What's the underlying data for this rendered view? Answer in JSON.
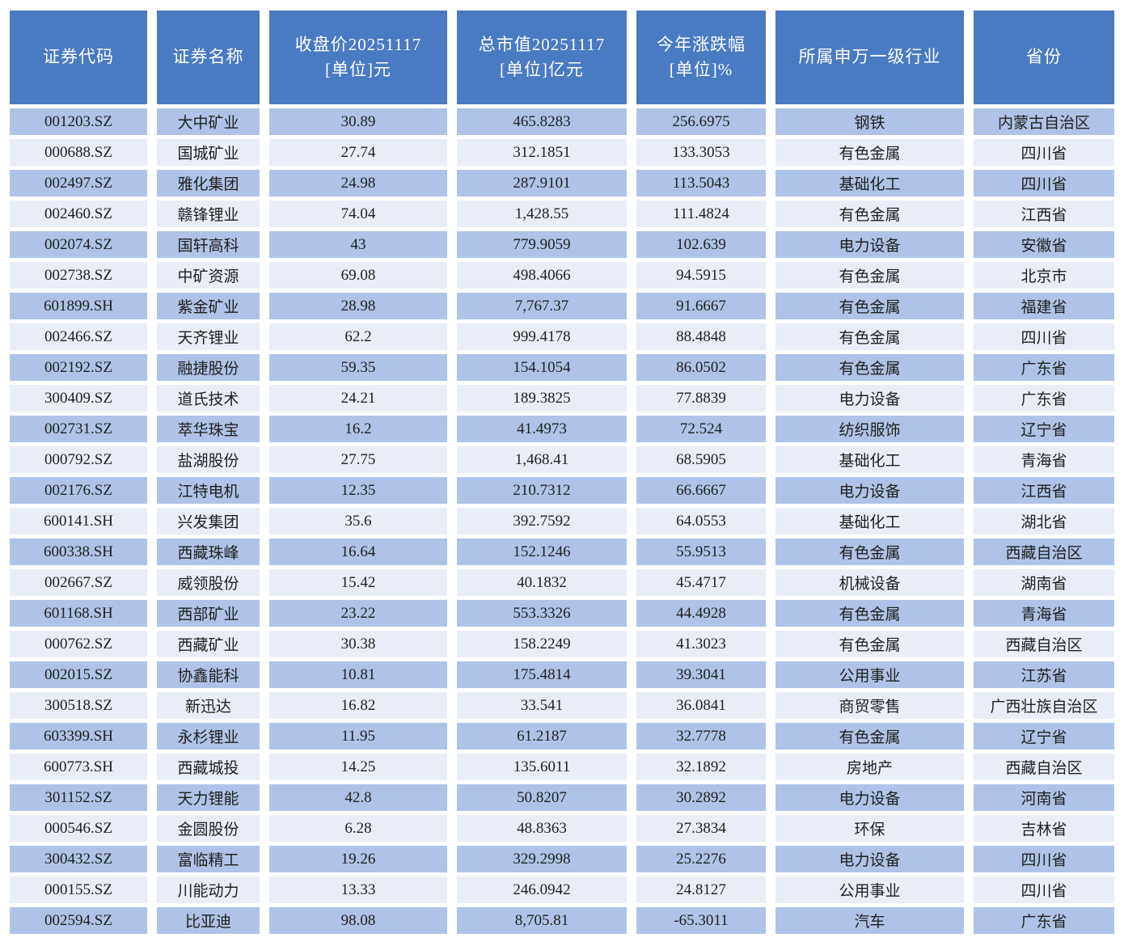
{
  "colors": {
    "header_bg": "#4a7ac1",
    "header_text": "#ffffff",
    "row_dark_bg": "#aec3e7",
    "row_light_bg": "#e9edf7",
    "cell_text": "#1f1f1f",
    "gap": "#ffffff"
  },
  "table": {
    "columns": [
      {
        "title": "证券代码",
        "unit": ""
      },
      {
        "title": "证券名称",
        "unit": ""
      },
      {
        "title": "收盘价20251117",
        "unit": "[单位]元"
      },
      {
        "title": "总市值20251117",
        "unit": "[单位]亿元"
      },
      {
        "title": "今年涨跌幅",
        "unit": "[单位]%"
      },
      {
        "title": "所属申万一级行业",
        "unit": ""
      },
      {
        "title": "省份",
        "unit": ""
      }
    ],
    "rows": [
      [
        "001203.SZ",
        "大中矿业",
        "30.89",
        "465.8283",
        "256.6975",
        "钢铁",
        "内蒙古自治区"
      ],
      [
        "000688.SZ",
        "国城矿业",
        "27.74",
        "312.1851",
        "133.3053",
        "有色金属",
        "四川省"
      ],
      [
        "002497.SZ",
        "雅化集团",
        "24.98",
        "287.9101",
        "113.5043",
        "基础化工",
        "四川省"
      ],
      [
        "002460.SZ",
        "赣锋锂业",
        "74.04",
        "1,428.55",
        "111.4824",
        "有色金属",
        "江西省"
      ],
      [
        "002074.SZ",
        "国轩高科",
        "43",
        "779.9059",
        "102.639",
        "电力设备",
        "安徽省"
      ],
      [
        "002738.SZ",
        "中矿资源",
        "69.08",
        "498.4066",
        "94.5915",
        "有色金属",
        "北京市"
      ],
      [
        "601899.SH",
        "紫金矿业",
        "28.98",
        "7,767.37",
        "91.6667",
        "有色金属",
        "福建省"
      ],
      [
        "002466.SZ",
        "天齐锂业",
        "62.2",
        "999.4178",
        "88.4848",
        "有色金属",
        "四川省"
      ],
      [
        "002192.SZ",
        "融捷股份",
        "59.35",
        "154.1054",
        "86.0502",
        "有色金属",
        "广东省"
      ],
      [
        "300409.SZ",
        "道氏技术",
        "24.21",
        "189.3825",
        "77.8839",
        "电力设备",
        "广东省"
      ],
      [
        "002731.SZ",
        "萃华珠宝",
        "16.2",
        "41.4973",
        "72.524",
        "纺织服饰",
        "辽宁省"
      ],
      [
        "000792.SZ",
        "盐湖股份",
        "27.75",
        "1,468.41",
        "68.5905",
        "基础化工",
        "青海省"
      ],
      [
        "002176.SZ",
        "江特电机",
        "12.35",
        "210.7312",
        "66.6667",
        "电力设备",
        "江西省"
      ],
      [
        "600141.SH",
        "兴发集团",
        "35.6",
        "392.7592",
        "64.0553",
        "基础化工",
        "湖北省"
      ],
      [
        "600338.SH",
        "西藏珠峰",
        "16.64",
        "152.1246",
        "55.9513",
        "有色金属",
        "西藏自治区"
      ],
      [
        "002667.SZ",
        "威领股份",
        "15.42",
        "40.1832",
        "45.4717",
        "机械设备",
        "湖南省"
      ],
      [
        "601168.SH",
        "西部矿业",
        "23.22",
        "553.3326",
        "44.4928",
        "有色金属",
        "青海省"
      ],
      [
        "000762.SZ",
        "西藏矿业",
        "30.38",
        "158.2249",
        "41.3023",
        "有色金属",
        "西藏自治区"
      ],
      [
        "002015.SZ",
        "协鑫能科",
        "10.81",
        "175.4814",
        "39.3041",
        "公用事业",
        "江苏省"
      ],
      [
        "300518.SZ",
        "新迅达",
        "16.82",
        "33.541",
        "36.0841",
        "商贸零售",
        "广西壮族自治区"
      ],
      [
        "603399.SH",
        "永杉锂业",
        "11.95",
        "61.2187",
        "32.7778",
        "有色金属",
        "辽宁省"
      ],
      [
        "600773.SH",
        "西藏城投",
        "14.25",
        "135.6011",
        "32.1892",
        "房地产",
        "西藏自治区"
      ],
      [
        "301152.SZ",
        "天力锂能",
        "42.8",
        "50.8207",
        "30.2892",
        "电力设备",
        "河南省"
      ],
      [
        "000546.SZ",
        "金圆股份",
        "6.28",
        "48.8363",
        "27.3834",
        "环保",
        "吉林省"
      ],
      [
        "300432.SZ",
        "富临精工",
        "19.26",
        "329.2998",
        "25.2276",
        "电力设备",
        "四川省"
      ],
      [
        "000155.SZ",
        "川能动力",
        "13.33",
        "246.0942",
        "24.8127",
        "公用事业",
        "四川省"
      ],
      [
        "002594.SZ",
        "比亚迪",
        "98.08",
        "8,705.81",
        "-65.3011",
        "汽车",
        "广东省"
      ]
    ]
  }
}
